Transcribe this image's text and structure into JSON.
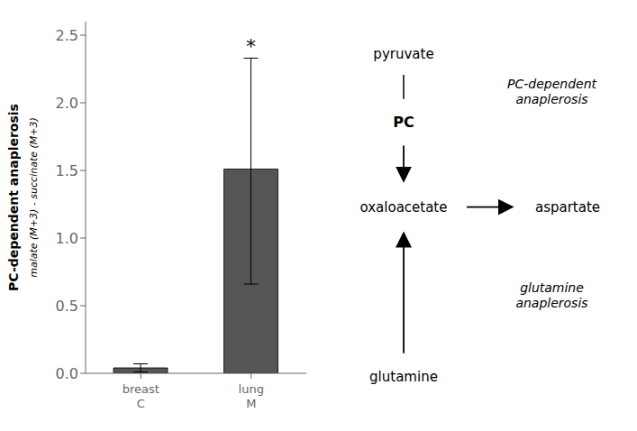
{
  "chart_data": {
    "type": "bar",
    "categories": [
      "breast\nC",
      "lung\nM"
    ],
    "values": [
      0.04,
      1.51
    ],
    "error_low": [
      0.03,
      0.85
    ],
    "error_high": [
      0.03,
      0.82
    ],
    "colors": [
      "#555555",
      "#555555"
    ],
    "ylabel": "PC-dependent anaplerosis",
    "ylabel_sub": "malate (M+3) - succinate (M+3)",
    "ylim": [
      0,
      2.6
    ],
    "yticks": [
      {
        "value": 0.0,
        "label": "0.0"
      },
      0.5,
      {
        "value": 1.0,
        "label": "1.0"
      },
      1.5,
      {
        "value": 2.0,
        "label": "2.0"
      },
      2.5
    ],
    "annotations": [
      {
        "text": "*",
        "category": "lung\nM"
      },
      {
        "text": "pyruvate"
      },
      {
        "text": "PC"
      },
      {
        "text": "oxaloacetate"
      },
      {
        "text": "aspartate"
      },
      {
        "text": "glutamine"
      },
      {
        "text": "PC-dependent\nanaplerosis"
      },
      {
        "text": "glutamine\nanaplerosis"
      }
    ]
  }
}
